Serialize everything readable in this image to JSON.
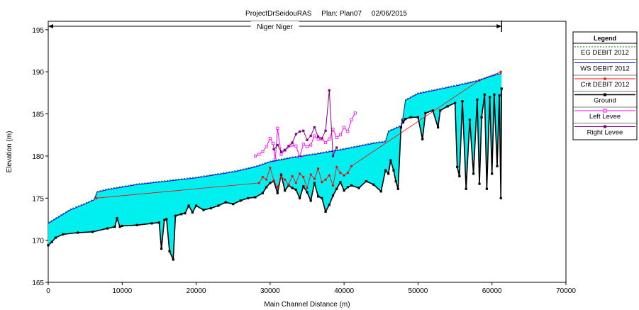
{
  "chart_data": {
    "type": "line",
    "title": "ProjectDrSeidouRAS     Plan: Plan07     02/06/2015",
    "reach_label": "Niger Niger",
    "xlabel": "Main Channel Distance (m)",
    "ylabel": "Elevation (m)",
    "xlim": [
      0,
      70000
    ],
    "ylim": [
      165,
      196
    ],
    "x_ticks": [
      0,
      10000,
      20000,
      30000,
      40000,
      50000,
      60000,
      70000
    ],
    "y_ticks": [
      165,
      170,
      175,
      180,
      185,
      190,
      195
    ],
    "grid": false,
    "legend_position": "right",
    "legend": {
      "title": "Legend",
      "entries": [
        "EG  DEBIT 2012",
        "WS  DEBIT 2012",
        "Crit  DEBIT 2012",
        "Ground",
        "Left Levee",
        "Right Levee"
      ]
    },
    "fill_between": {
      "upper": "WS  DEBIT 2012",
      "lower": "Ground",
      "color": "#00f0f0"
    },
    "series": [
      {
        "name": "EG  DEBIT 2012",
        "color": "#008000",
        "x": [
          0,
          1500,
          3000,
          5000,
          6200,
          6600,
          8000,
          12000,
          16000,
          20000,
          25000,
          28000,
          30000,
          33000,
          36000,
          40000,
          44000,
          45600,
          46000,
          47000,
          47800,
          48300,
          50000,
          55000,
          58000,
          60000,
          61300
        ],
        "y": [
          172.1,
          172.9,
          173.7,
          174.4,
          174.9,
          175.8,
          176.1,
          176.7,
          177.1,
          177.5,
          178.2,
          178.8,
          179.4,
          179.9,
          180.3,
          180.9,
          181.6,
          181.8,
          183.0,
          183.4,
          183.7,
          186.7,
          187.5,
          188.4,
          189.0,
          189.6,
          189.9
        ]
      },
      {
        "name": "WS  DEBIT 2012",
        "color": "#0000ff",
        "x": [
          0,
          1500,
          3000,
          5000,
          6200,
          6600,
          8000,
          12000,
          16000,
          20000,
          25000,
          28000,
          30000,
          33000,
          36000,
          40000,
          44000,
          45600,
          46000,
          47000,
          47800,
          48300,
          50000,
          55000,
          58000,
          60000,
          61300
        ],
        "y": [
          172.0,
          172.8,
          173.6,
          174.3,
          174.8,
          175.7,
          176.0,
          176.6,
          177.0,
          177.4,
          178.1,
          178.7,
          179.3,
          179.8,
          180.2,
          180.8,
          181.5,
          181.7,
          182.9,
          183.3,
          183.6,
          186.6,
          187.4,
          188.3,
          188.9,
          189.5,
          189.8
        ]
      },
      {
        "name": "Crit  DEBIT 2012",
        "color": "#ff0000",
        "x": [
          6500,
          28500,
          29000,
          29500,
          30000,
          30500,
          31000,
          31500,
          32000,
          32500,
          33000,
          33500,
          34000,
          34500,
          35000,
          35500,
          36000,
          36500,
          37000,
          37500,
          38000,
          38500,
          39000,
          39500,
          40000,
          40500,
          41000,
          58300,
          61200
        ],
        "y": [
          175.0,
          176.8,
          177.5,
          177.2,
          178.6,
          177.1,
          176.3,
          177.5,
          177.2,
          176.6,
          177.6,
          176.8,
          177.9,
          177.5,
          176.2,
          177.8,
          177.3,
          178.5,
          176.9,
          177.2,
          177.7,
          176.5,
          178.7,
          178.0,
          177.7,
          178.0,
          178.8,
          189.0,
          190.0
        ]
      },
      {
        "name": "Ground",
        "color": "#000000",
        "x": [
          0,
          500,
          1000,
          2000,
          4000,
          6000,
          8000,
          9000,
          9300,
          9700,
          10000,
          12000,
          14000,
          15000,
          15300,
          15700,
          16000,
          16400,
          16900,
          17200,
          18000,
          18500,
          19000,
          19500,
          20000,
          21000,
          22000,
          23000,
          24000,
          25000,
          26000,
          27000,
          28000,
          29000,
          29500,
          30000,
          30500,
          31000,
          31500,
          32000,
          32500,
          33000,
          33500,
          34000,
          34500,
          35000,
          35500,
          36000,
          36500,
          37000,
          37500,
          38000,
          38500,
          39000,
          39500,
          40000,
          40500,
          41000,
          42000,
          43000,
          44000,
          45000,
          45600,
          46000,
          46300,
          46700,
          47000,
          47300,
          47700,
          47900,
          48000,
          48300,
          49000,
          50000,
          50600,
          51000,
          52000,
          52700,
          53000,
          54000,
          55000,
          55300,
          55600,
          56000,
          56500,
          57000,
          57500,
          58000,
          58300,
          58600,
          59000,
          59300,
          59700,
          60000,
          60300,
          60700,
          61000,
          61200,
          61300
        ],
        "y": [
          169.4,
          169.8,
          170.3,
          170.7,
          170.9,
          171.0,
          171.4,
          171.6,
          172.6,
          171.6,
          171.7,
          171.8,
          172.0,
          172.1,
          169.0,
          172.4,
          172.5,
          168.7,
          167.7,
          172.9,
          173.1,
          173.2,
          174.1,
          173.3,
          174.1,
          173.6,
          173.8,
          174.1,
          174.5,
          174.3,
          174.7,
          175.0,
          175.1,
          175.6,
          176.3,
          176.8,
          177.0,
          175.6,
          177.8,
          175.9,
          176.5,
          176.2,
          176.0,
          175.0,
          176.4,
          175.7,
          174.7,
          176.8,
          175.2,
          175.0,
          173.4,
          174.2,
          175.3,
          176.1,
          176.9,
          175.9,
          176.3,
          176.5,
          176.2,
          177.0,
          176.6,
          175.8,
          178.3,
          177.9,
          179.5,
          178.3,
          177.0,
          176.1,
          183.4,
          184.3,
          184.0,
          184.4,
          184.6,
          184.6,
          182.0,
          185.1,
          185.4,
          183.4,
          185.4,
          185.9,
          186.3,
          178.7,
          177.6,
          186.5,
          176.1,
          184.3,
          177.9,
          186.7,
          176.7,
          184.6,
          187.3,
          176.1,
          187.0,
          177.9,
          187.3,
          178.8,
          187.2,
          175.0,
          188.0
        ]
      },
      {
        "name": "Left Levee",
        "color": "#ff00ff",
        "x": [
          28000,
          28500,
          29000,
          29500,
          30000,
          30400,
          30700,
          31000,
          31500,
          32000,
          33000,
          33500,
          34000,
          34500,
          35000,
          35500,
          36000,
          36500,
          37000,
          37500,
          38000,
          38500,
          39000,
          39500,
          40000,
          40500,
          41000,
          41500
        ],
        "y": [
          180.0,
          180.2,
          180.5,
          181.1,
          182.1,
          181.5,
          179.6,
          183.3,
          180.2,
          180.7,
          181.3,
          181.2,
          179.9,
          181.4,
          181.1,
          181.3,
          182.4,
          182.0,
          182.0,
          181.6,
          182.0,
          183.2,
          182.2,
          182.5,
          183.4,
          182.9,
          184.3,
          185.1
        ]
      },
      {
        "name": "Right Levee",
        "color": "#800080",
        "x": [
          30500,
          31000,
          31500,
          32000,
          32500,
          33000,
          33500,
          34000,
          34500,
          35000,
          35500,
          36000,
          36500,
          37000,
          37500,
          38000,
          38500,
          39000
        ],
        "y": [
          180.8,
          181.3,
          180.5,
          180.7,
          181.2,
          181.6,
          182.6,
          182.9,
          183.0,
          181.9,
          182.4,
          183.4,
          182.3,
          182.1,
          183.0,
          187.8,
          180.0,
          181.0
        ]
      }
    ]
  }
}
